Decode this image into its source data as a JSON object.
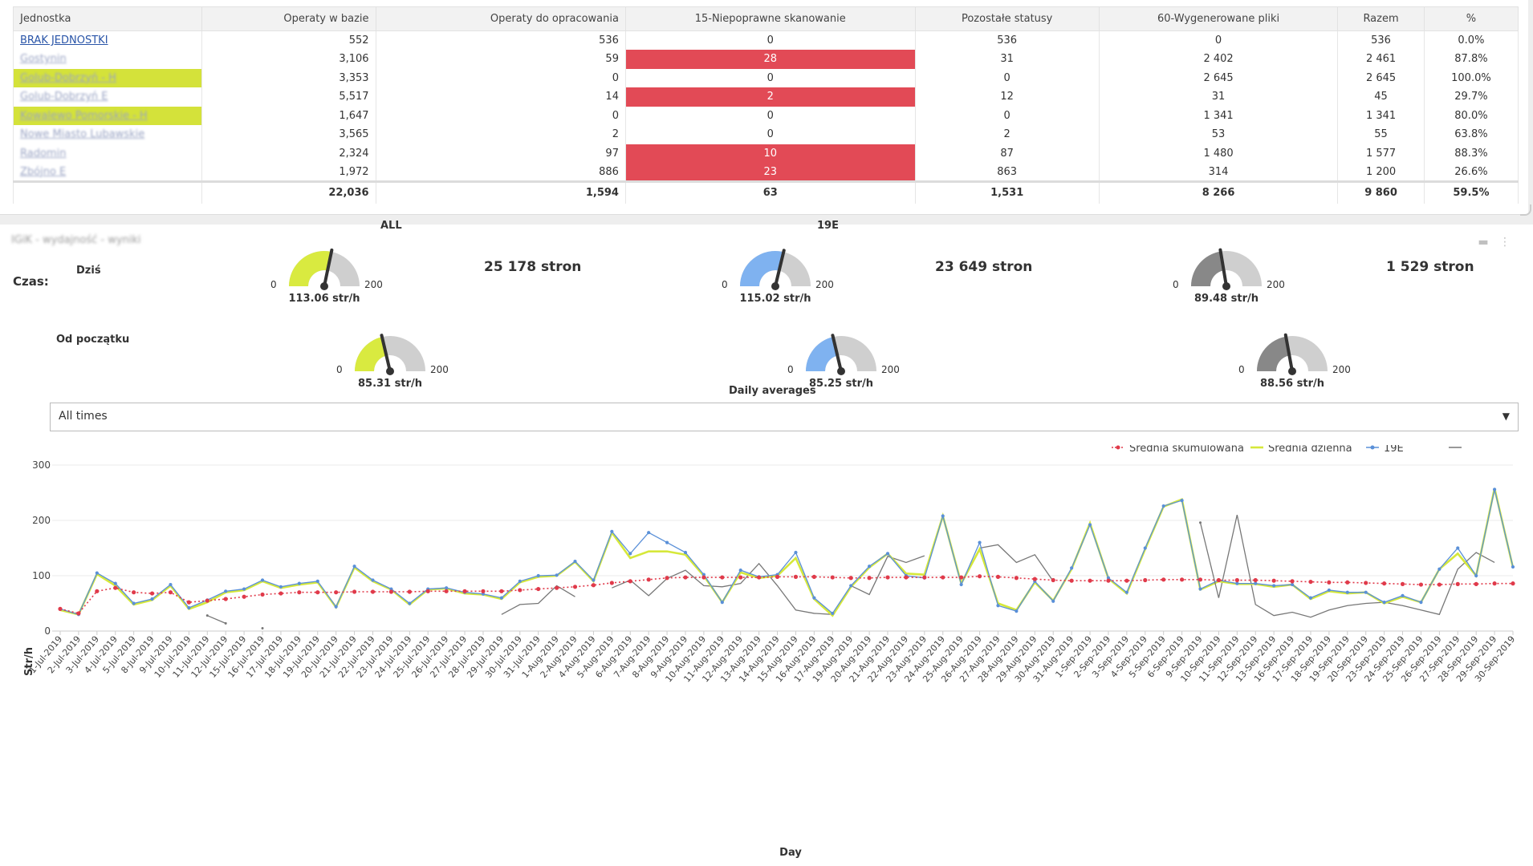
{
  "table": {
    "headers": [
      "Jednostka",
      "Operaty w bazie",
      "Operaty do opracowania",
      "15-Niepoprawne skanowanie",
      "Pozostałe statusy",
      "60-Wygenerowane pliki",
      "Razem",
      "%"
    ],
    "rows": [
      {
        "name": "BRAK JEDNOSTKI",
        "cells": [
          "552",
          "536",
          "0",
          "536",
          "0",
          "536",
          "0.0%"
        ],
        "red": false,
        "highlight": false,
        "link": true,
        "blurred": false
      },
      {
        "name": "Gostynin",
        "cells": [
          "3,106",
          "59",
          "28",
          "31",
          "2 402",
          "2 461",
          "87.8%"
        ],
        "red": true,
        "highlight": false,
        "link": false,
        "blurred": true
      },
      {
        "name": "Golub-Dobrzyń - H",
        "cells": [
          "3,353",
          "0",
          "0",
          "0",
          "2 645",
          "2 645",
          "100.0%"
        ],
        "red": false,
        "highlight": true,
        "link": false,
        "blurred": true
      },
      {
        "name": "Golub-Dobrzyń E",
        "cells": [
          "5,517",
          "14",
          "2",
          "12",
          "31",
          "45",
          "29.7%"
        ],
        "red": true,
        "highlight": false,
        "link": false,
        "blurred": true
      },
      {
        "name": "Kowalewo Pomorskie - H",
        "cells": [
          "1,647",
          "0",
          "0",
          "0",
          "1 341",
          "1 341",
          "80.0%"
        ],
        "red": false,
        "highlight": true,
        "link": false,
        "blurred": true
      },
      {
        "name": "Nowe Miasto Lubawskie",
        "cells": [
          "3,565",
          "2",
          "0",
          "2",
          "53",
          "55",
          "63.8%"
        ],
        "red": false,
        "highlight": false,
        "link": false,
        "blurred": true
      },
      {
        "name": "Radomin",
        "cells": [
          "2,324",
          "97",
          "10",
          "87",
          "1 480",
          "1 577",
          "88.3%"
        ],
        "red": true,
        "highlight": false,
        "link": false,
        "blurred": true
      },
      {
        "name": "Zbójno E",
        "cells": [
          "1,972",
          "886",
          "23",
          "863",
          "314",
          "1 200",
          "26.6%"
        ],
        "red": true,
        "highlight": false,
        "link": false,
        "blurred": true
      }
    ],
    "totals": [
      "",
      "22,036",
      "1,594",
      "63",
      "1,531",
      "8 266",
      "9 860",
      "59.5%"
    ]
  },
  "panel": {
    "title": "IGiK - wydajność - wyniki"
  },
  "gauges": {
    "row_labels": [
      "Dziś",
      "Od początku"
    ],
    "columns": [
      {
        "title": "ALL",
        "color": "#d9ea40",
        "today": {
          "value": 113.06,
          "label": "113.06 str/h"
        },
        "total": {
          "value": 85.31,
          "label": "85.31 str/h"
        },
        "pages": "25 178 stron"
      },
      {
        "title": "19E",
        "color": "#7fb2f0",
        "today": {
          "value": 115.02,
          "label": "115.02 str/h"
        },
        "total": {
          "value": 85.25,
          "label": "85.25 str/h"
        },
        "pages": "23 649 stron"
      },
      {
        "title": "",
        "color": "#888888",
        "today": {
          "value": 89.48,
          "label": "89.48 str/h"
        },
        "total": {
          "value": 88.56,
          "label": "88.56 str/h"
        },
        "pages": "1 529 stron"
      }
    ],
    "min_label": "0",
    "max_label": "200",
    "min": 0,
    "max": 200
  },
  "daily_title": "Daily averages",
  "filter": {
    "label": "Czas:",
    "value": "All times"
  },
  "chart_data": {
    "type": "line",
    "title": "",
    "xlabel": "Day",
    "ylabel": "Str/h",
    "ylim": [
      0,
      300
    ],
    "yticks": [
      0,
      100,
      200,
      300
    ],
    "legend_position": "top-right",
    "x": [
      "1-Jul-2019",
      "2-Jul-2019",
      "3-Jul-2019",
      "4-Jul-2019",
      "5-Jul-2019",
      "8-Jul-2019",
      "9-Jul-2019",
      "10-Jul-2019",
      "11-Jul-2019",
      "12-Jul-2019",
      "15-Jul-2019",
      "16-Jul-2019",
      "17-Jul-2019",
      "18-Jul-2019",
      "19-Jul-2019",
      "20-Jul-2019",
      "21-Jul-2019",
      "22-Jul-2019",
      "23-Jul-2019",
      "24-Jul-2019",
      "25-Jul-2019",
      "26-Jul-2019",
      "27-Jul-2019",
      "28-Jul-2019",
      "29-Jul-2019",
      "30-Jul-2019",
      "31-Jul-2019",
      "1-Aug-2019",
      "2-Aug-2019",
      "4-Aug-2019",
      "5-Aug-2019",
      "6-Aug-2019",
      "7-Aug-2019",
      "8-Aug-2019",
      "9-Aug-2019",
      "10-Aug-2019",
      "11-Aug-2019",
      "12-Aug-2019",
      "13-Aug-2019",
      "14-Aug-2019",
      "15-Aug-2019",
      "16-Aug-2019",
      "17-Aug-2019",
      "19-Aug-2019",
      "20-Aug-2019",
      "21-Aug-2019",
      "22-Aug-2019",
      "23-Aug-2019",
      "24-Aug-2019",
      "25-Aug-2019",
      "26-Aug-2019",
      "27-Aug-2019",
      "28-Aug-2019",
      "29-Aug-2019",
      "30-Aug-2019",
      "31-Aug-2019",
      "1-Sep-2019",
      "2-Sep-2019",
      "3-Sep-2019",
      "4-Sep-2019",
      "5-Sep-2019",
      "6-Sep-2019",
      "9-Sep-2019",
      "10-Sep-2019",
      "11-Sep-2019",
      "12-Sep-2019",
      "13-Sep-2019",
      "16-Sep-2019",
      "17-Sep-2019",
      "18-Sep-2019",
      "19-Sep-2019",
      "20-Sep-2019",
      "23-Sep-2019",
      "24-Sep-2019",
      "25-Sep-2019",
      "26-Sep-2019",
      "27-Sep-2019",
      "28-Sep-2019",
      "29-Sep-2019",
      "30-Sep-2019"
    ],
    "series": [
      {
        "name": "Średnia skumulowana",
        "color": "#e03a4a",
        "style": "dotted-markers",
        "values": [
          40,
          32,
          72,
          78,
          70,
          68,
          70,
          52,
          55,
          58,
          62,
          66,
          68,
          70,
          70,
          70,
          71,
          71,
          71,
          71,
          72,
          72,
          72,
          72,
          72,
          74,
          76,
          78,
          80,
          83,
          87,
          90,
          93,
          96,
          97,
          97,
          97,
          97,
          97,
          98,
          98,
          98,
          97,
          96,
          96,
          97,
          97,
          97,
          97,
          97,
          99,
          98,
          96,
          94,
          92,
          91,
          91,
          91,
          91,
          92,
          93,
          93,
          93,
          92,
          92,
          92,
          91,
          90,
          89,
          88,
          88,
          87,
          86,
          85,
          84,
          84,
          85,
          85,
          86,
          86
        ]
      },
      {
        "name": "Średnia dzienna",
        "color": "#d6e83a",
        "style": "line",
        "values": [
          38,
          30,
          103,
          82,
          48,
          56,
          82,
          40,
          52,
          70,
          74,
          90,
          78,
          84,
          88,
          43,
          115,
          90,
          75,
          48,
          75,
          77,
          68,
          66,
          58,
          88,
          98,
          100,
          125,
          90,
          178,
          132,
          144,
          144,
          138,
          100,
          52,
          106,
          96,
          100,
          132,
          58,
          28,
          80,
          115,
          140,
          104,
          102,
          208,
          86,
          148,
          50,
          38,
          88,
          55,
          112,
          195,
          95,
          68,
          148,
          225,
          238,
          75,
          90,
          85,
          85,
          80,
          84,
          58,
          72,
          68,
          70,
          50,
          62,
          52,
          112,
          140,
          100,
          258,
          115
        ]
      },
      {
        "name": "19E",
        "color": "#5a90d8",
        "style": "markers",
        "values": [
          40,
          30,
          105,
          86,
          50,
          58,
          84,
          42,
          56,
          72,
          76,
          92,
          80,
          86,
          90,
          44,
          117,
          92,
          76,
          50,
          76,
          78,
          70,
          67,
          60,
          90,
          100,
          101,
          126,
          92,
          180,
          140,
          178,
          160,
          142,
          102,
          52,
          110,
          98,
          102,
          142,
          60,
          32,
          82,
          117,
          140,
          100,
          96,
          208,
          84,
          160,
          46,
          36,
          90,
          54,
          114,
          192,
          96,
          70,
          150,
          226,
          236,
          76,
          92,
          86,
          86,
          82,
          84,
          60,
          74,
          70,
          70,
          52,
          64,
          52,
          112,
          150,
          100,
          256,
          116
        ]
      },
      {
        "name": "",
        "color": "#777777",
        "style": "line-gaps",
        "values": [
          null,
          null,
          null,
          null,
          null,
          null,
          null,
          null,
          null,
          null,
          null,
          null,
          null,
          null,
          null,
          null,
          null,
          null,
          null,
          null,
          null,
          null,
          null,
          null,
          30,
          48,
          50,
          82,
          62,
          null,
          78,
          92,
          64,
          95,
          110,
          82,
          80,
          86,
          122,
          82,
          38,
          32,
          30,
          82,
          66,
          135,
          124,
          136,
          null,
          null,
          150,
          156,
          124,
          138,
          90,
          null,
          null,
          null,
          null,
          null,
          null,
          null,
          null,
          60,
          210,
          48,
          28,
          34,
          25,
          38,
          46,
          50,
          52,
          46,
          38,
          30,
          112,
          142,
          124,
          null
        ]
      }
    ],
    "stray_points": [
      {
        "series": 3,
        "x_index": 8,
        "value": 28
      },
      {
        "series": 3,
        "x_index": 9,
        "value": 14
      },
      {
        "series": 3,
        "x_index": 11,
        "value": 5
      },
      {
        "series": 3,
        "x_index": 62,
        "value": 196
      }
    ]
  }
}
